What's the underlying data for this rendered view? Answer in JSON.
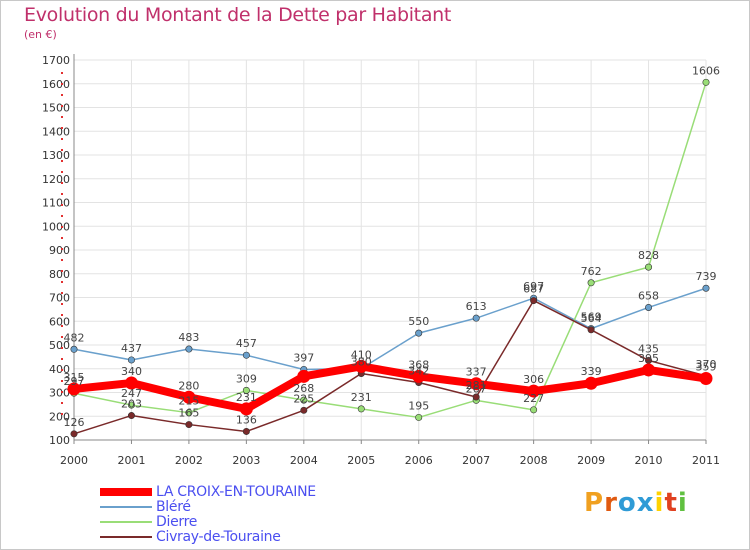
{
  "header": {
    "title": "Evolution du Montant de la Dette par Habitant",
    "subtitle": "(en €)"
  },
  "logo": {
    "text": "Proxiti",
    "colors": [
      "#f0a020",
      "#e05a10",
      "#2f9bd6",
      "#2f9bd6",
      "#ffd200",
      "#e04020",
      "#60c040"
    ]
  },
  "chart_data": {
    "type": "line",
    "title": "Evolution du Montant de la Dette par Habitant",
    "ylabel": "(en €)",
    "xlabel": "",
    "ylim": [
      100,
      1700
    ],
    "yticks": [
      100,
      200,
      300,
      400,
      500,
      600,
      700,
      800,
      900,
      1000,
      1100,
      1200,
      1300,
      1400,
      1500,
      1600,
      1700
    ],
    "categories": [
      "2000",
      "2001",
      "2002",
      "2003",
      "2004",
      "2005",
      "2006",
      "2007",
      "2008",
      "2009",
      "2010",
      "2011"
    ],
    "grid": true,
    "legend_position": "bottom-left",
    "series": [
      {
        "name": "LA CROIX-EN-TOURAINE",
        "color": "#ff0000",
        "width": 8,
        "values": [
          315,
          340,
          280,
          231,
          368,
          410,
          368,
          337,
          306,
          339,
          395,
          359
        ]
      },
      {
        "name": "Bléré",
        "color": "#6aa0cc",
        "width": 1.5,
        "values": [
          482,
          437,
          483,
          457,
          397,
          401,
          550,
          613,
          697,
          569,
          658,
          739
        ]
      },
      {
        "name": "Dierre",
        "color": "#99dd77",
        "width": 1.5,
        "values": [
          297,
          247,
          215,
          309,
          268,
          231,
          195,
          267,
          227,
          762,
          828,
          1606
        ]
      },
      {
        "name": "Civray-de-Touraine",
        "color": "#7a2a2a",
        "width": 1.5,
        "values": [
          126,
          203,
          165,
          136,
          225,
          380,
          342,
          281,
          687,
          564,
          435,
          370
        ]
      }
    ],
    "point_labels": [
      {
        "series": "LA CROIX-EN-TOURAINE",
        "labels": [
          "315",
          "340",
          "280",
          "231",
          "",
          "410",
          "368",
          "337",
          "306",
          "339",
          "395",
          "359"
        ]
      },
      {
        "series": "Bléré",
        "labels": [
          "482",
          "437",
          "483",
          "457",
          "397",
          "",
          "550",
          "613",
          "697",
          "569",
          "658",
          "739"
        ]
      },
      {
        "series": "Dierre",
        "labels": [
          "297",
          "247",
          "215",
          "309",
          "268",
          "231",
          "195",
          "267",
          "227",
          "762",
          "828",
          "1606"
        ]
      },
      {
        "series": "Civray-de-Touraine",
        "labels": [
          "126",
          "203",
          "165",
          "136",
          "225",
          "380",
          "342",
          "281",
          "687",
          "564",
          "435",
          "370"
        ]
      }
    ]
  }
}
